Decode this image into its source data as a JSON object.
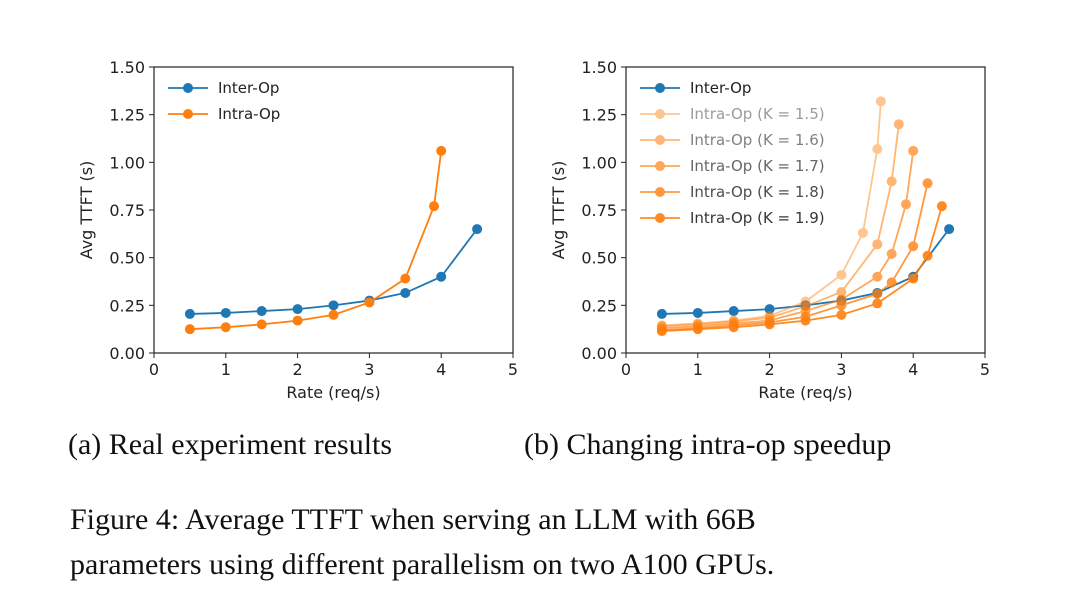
{
  "chart_data": [
    {
      "type": "line",
      "title": "",
      "xlabel": "Rate (req/s)",
      "ylabel": "Avg TTFT (s)",
      "xlim": [
        0,
        5
      ],
      "ylim": [
        0,
        1.5
      ],
      "xticks": [
        "0",
        "1",
        "2",
        "3",
        "4",
        "5"
      ],
      "yticks": [
        "0.00",
        "0.25",
        "0.50",
        "0.75",
        "1.00",
        "1.25",
        "1.50"
      ],
      "grid": false,
      "legend_position": "top-left",
      "series": [
        {
          "name": "Inter-Op",
          "color": "#1f77b4",
          "opacity": 1,
          "x": [
            0.5,
            1,
            1.5,
            2,
            2.5,
            3,
            3.5,
            4,
            4.5
          ],
          "y": [
            0.205,
            0.21,
            0.22,
            0.23,
            0.25,
            0.275,
            0.315,
            0.4,
            0.65
          ]
        },
        {
          "name": "Intra-Op",
          "color": "#ff7f0e",
          "opacity": 1,
          "x": [
            0.5,
            1,
            1.5,
            2,
            2.5,
            3,
            3.5,
            3.9,
            4.0
          ],
          "y": [
            0.125,
            0.135,
            0.15,
            0.17,
            0.2,
            0.265,
            0.39,
            0.77,
            1.06
          ]
        }
      ],
      "caption": "(a) Real experiment results"
    },
    {
      "type": "line",
      "title": "",
      "xlabel": "Rate (req/s)",
      "ylabel": "Avg TTFT (s)",
      "xlim": [
        0,
        5
      ],
      "ylim": [
        0,
        1.5
      ],
      "xticks": [
        "0",
        "1",
        "2",
        "3",
        "4",
        "5"
      ],
      "yticks": [
        "0.00",
        "0.25",
        "0.50",
        "0.75",
        "1.00",
        "1.25",
        "1.50"
      ],
      "grid": false,
      "legend_position": "top-left",
      "series": [
        {
          "name": "Inter-Op",
          "color": "#1f77b4",
          "opacity": 1,
          "x": [
            0.5,
            1,
            1.5,
            2,
            2.5,
            3,
            3.5,
            4,
            4.5
          ],
          "y": [
            0.205,
            0.21,
            0.22,
            0.23,
            0.25,
            0.275,
            0.315,
            0.4,
            0.65
          ]
        },
        {
          "name": "Intra-Op (K = 1.5)",
          "color": "#ff7f0e",
          "opacity": 0.45,
          "x": [
            0.5,
            1,
            1.5,
            2,
            2.5,
            3,
            3.3,
            3.5,
            3.55
          ],
          "y": [
            0.145,
            0.155,
            0.17,
            0.195,
            0.27,
            0.41,
            0.63,
            1.07,
            1.32
          ]
        },
        {
          "name": "Intra-Op (K = 1.6)",
          "color": "#ff7f0e",
          "opacity": 0.57,
          "x": [
            0.5,
            1,
            1.5,
            2,
            2.5,
            3,
            3.5,
            3.7,
            3.8
          ],
          "y": [
            0.14,
            0.15,
            0.165,
            0.185,
            0.245,
            0.32,
            0.57,
            0.9,
            1.2
          ]
        },
        {
          "name": "Intra-Op (K = 1.7)",
          "color": "#ff7f0e",
          "opacity": 0.69,
          "x": [
            0.5,
            1,
            1.5,
            2,
            2.5,
            3,
            3.5,
            3.7,
            3.9,
            4.0
          ],
          "y": [
            0.13,
            0.14,
            0.155,
            0.17,
            0.22,
            0.28,
            0.4,
            0.52,
            0.78,
            1.06
          ]
        },
        {
          "name": "Intra-Op (K = 1.8)",
          "color": "#ff7f0e",
          "opacity": 0.8,
          "x": [
            0.5,
            1,
            1.5,
            2,
            2.5,
            3,
            3.5,
            3.7,
            4.0,
            4.2
          ],
          "y": [
            0.12,
            0.13,
            0.145,
            0.16,
            0.19,
            0.25,
            0.31,
            0.37,
            0.56,
            0.89
          ]
        },
        {
          "name": "Intra-Op (K = 1.9)",
          "color": "#ff7f0e",
          "opacity": 0.9,
          "x": [
            0.5,
            1,
            1.5,
            2,
            2.5,
            3,
            3.5,
            4.0,
            4.2,
            4.4
          ],
          "y": [
            0.115,
            0.125,
            0.135,
            0.15,
            0.17,
            0.2,
            0.26,
            0.39,
            0.51,
            0.77
          ]
        }
      ],
      "caption": "(b) Changing intra-op speedup"
    }
  ],
  "figure_caption": {
    "line1": "Figure 4: Average TTFT when serving an LLM with 66B",
    "line2": "parameters using different parallelism on two A100 GPUs."
  }
}
